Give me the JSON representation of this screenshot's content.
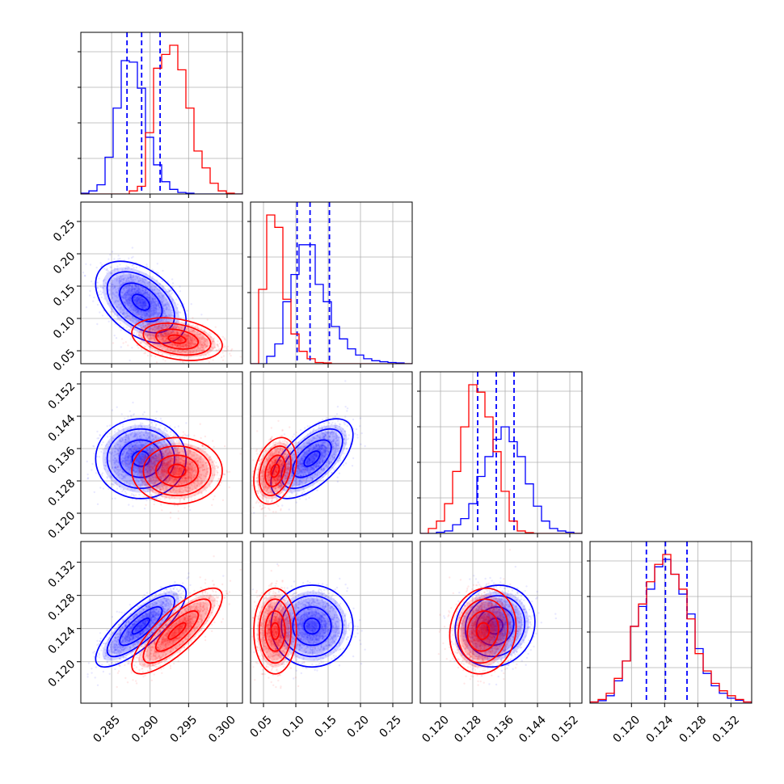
{
  "chart_data": {
    "type": "corner",
    "grid": true,
    "legend": "none",
    "colors": {
      "series_a": "#0000ff",
      "series_b": "#ff0000"
    },
    "params": [
      {
        "lim": [
          0.281,
          0.302
        ],
        "ticks": [
          "0.285",
          "0.290",
          "0.295",
          "0.300"
        ]
      },
      {
        "lim": [
          0.03,
          0.28
        ],
        "ticks": [
          "0.05",
          "0.10",
          "0.15",
          "0.20",
          "0.25"
        ]
      },
      {
        "lim": [
          0.115,
          0.155
        ],
        "ticks": [
          "0.120",
          "0.128",
          "0.136",
          "0.144",
          "0.152"
        ]
      },
      {
        "lim": [
          0.115,
          0.1345
        ],
        "ticks": [
          "0.120",
          "0.124",
          "0.128",
          "0.132"
        ]
      }
    ],
    "series": [
      {
        "color": "#0000ff",
        "mean": [
          0.2888,
          0.125,
          0.1335,
          0.1243
        ],
        "sd": [
          0.0025,
          0.027,
          0.0042,
          0.0021
        ],
        "corr": {
          "0-1": -0.45,
          "0-2": 0.0,
          "0-3": 0.8,
          "1-2": 0.6,
          "1-3": 0.0,
          "2-3": 0.1
        },
        "quantiles": [
          [
            0.287,
            0.2889,
            0.2913
          ],
          [
            0.102,
            0.122,
            0.152
          ],
          [
            0.1292,
            0.1338,
            0.1382
          ],
          [
            0.1218,
            0.1241,
            0.1267
          ]
        ],
        "hist": [
          [
            0.005,
            0.02,
            0.06,
            0.24,
            0.56,
            0.87,
            0.86,
            0.69,
            0.37,
            0.19,
            0.08,
            0.03,
            0.01,
            0.005,
            0.0,
            0.0,
            0.0,
            0.0,
            0.0,
            0.0
          ],
          [
            0.0,
            0.0,
            0.03,
            0.08,
            0.25,
            0.36,
            0.48,
            0.48,
            0.32,
            0.25,
            0.15,
            0.1,
            0.06,
            0.035,
            0.02,
            0.012,
            0.008,
            0.005,
            0.003,
            0.0
          ],
          [
            0.0,
            0.0,
            0.005,
            0.01,
            0.035,
            0.06,
            0.12,
            0.23,
            0.31,
            0.38,
            0.43,
            0.37,
            0.31,
            0.2,
            0.11,
            0.05,
            0.02,
            0.01,
            0.005,
            0.0
          ],
          [
            0.005,
            0.01,
            0.03,
            0.09,
            0.17,
            0.31,
            0.39,
            0.46,
            0.55,
            0.58,
            0.52,
            0.44,
            0.36,
            0.22,
            0.12,
            0.07,
            0.04,
            0.02,
            0.012,
            0.005
          ]
        ]
      },
      {
        "color": "#ff0000",
        "mean": [
          0.2935,
          0.068,
          0.1305,
          0.1237
        ],
        "sd": [
          0.0025,
          0.014,
          0.0035,
          0.0022
        ],
        "corr": {
          "0-1": -0.3,
          "0-2": 0.0,
          "0-3": 0.8,
          "1-2": 0.3,
          "1-3": 0.0,
          "2-3": 0.1
        },
        "quantiles": null,
        "hist": [
          [
            0.0,
            0.0,
            0.0,
            0.0,
            0.0,
            0.0,
            0.02,
            0.05,
            0.4,
            0.82,
            0.91,
            0.97,
            0.81,
            0.56,
            0.28,
            0.17,
            0.07,
            0.02,
            0.005,
            0.0
          ],
          [
            0.0,
            0.3,
            0.6,
            0.55,
            0.26,
            0.12,
            0.05,
            0.02,
            0.005,
            0.003,
            0.0,
            0.0,
            0.0,
            0.0,
            0.0,
            0.0,
            0.0,
            0.0,
            0.0,
            0.0
          ],
          [
            0.0,
            0.02,
            0.05,
            0.12,
            0.25,
            0.43,
            0.6,
            0.57,
            0.47,
            0.33,
            0.17,
            0.05,
            0.01,
            0.003,
            0.0,
            0.0,
            0.0,
            0.0,
            0.0,
            0.0
          ],
          [
            0.005,
            0.015,
            0.04,
            0.1,
            0.17,
            0.31,
            0.4,
            0.49,
            0.56,
            0.6,
            0.52,
            0.46,
            0.34,
            0.2,
            0.13,
            0.08,
            0.05,
            0.03,
            0.015,
            0.005
          ]
        ]
      }
    ]
  }
}
